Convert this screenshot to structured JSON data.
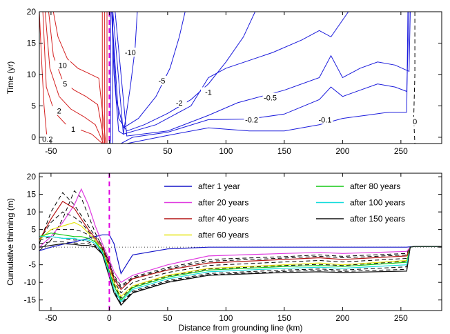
{
  "chart_data": [
    {
      "type": "contour",
      "ylabel": "Time (yr)",
      "xlim": [
        -60,
        285
      ],
      "ylim": [
        -1,
        20
      ],
      "xticks": [
        -50,
        0,
        50,
        100,
        150,
        200,
        250
      ],
      "yticks": [
        0,
        5,
        10,
        15,
        20
      ],
      "grounding_line_x": 0,
      "positive_color": "#d42020",
      "negative_color": "#1a1adc",
      "zero_color": "#000000",
      "contour_labels": [
        {
          "text": "10",
          "x": -40,
          "y": 11.5,
          "sign": "pos"
        },
        {
          "text": "5",
          "x": -38,
          "y": 8.5,
          "sign": "pos"
        },
        {
          "text": "2",
          "x": -43,
          "y": 4.2,
          "sign": "pos"
        },
        {
          "text": "1",
          "x": -31,
          "y": 1.3,
          "sign": "pos"
        },
        {
          "text": "0.2",
          "x": -53,
          "y": -0.3,
          "sign": "pos"
        },
        {
          "text": "-10",
          "x": 18,
          "y": 13.5,
          "sign": "neg"
        },
        {
          "text": "-5",
          "x": 45,
          "y": 9.0,
          "sign": "neg"
        },
        {
          "text": "-2",
          "x": 60,
          "y": 5.5,
          "sign": "neg"
        },
        {
          "text": "-1",
          "x": 85,
          "y": 7.2,
          "sign": "neg"
        },
        {
          "text": "-0.5",
          "x": 138,
          "y": 6.3,
          "sign": "neg"
        },
        {
          "text": "-0.2",
          "x": 122,
          "y": 2.8,
          "sign": "neg"
        },
        {
          "text": "-0.1",
          "x": 185,
          "y": 2.8,
          "sign": "neg"
        },
        {
          "text": "0",
          "x": 262,
          "y": 2.5,
          "sign": "zero"
        }
      ],
      "contours": [
        {
          "level": 0.2,
          "x": [
            -60,
            -58,
            -56,
            -54,
            -53,
            -52
          ],
          "y": [
            20,
            12,
            5,
            1,
            -0.5,
            -1
          ]
        },
        {
          "level": 1,
          "x": [
            -57,
            -54,
            -47,
            -37,
            -25,
            -15,
            -6
          ],
          "y": [
            20,
            8,
            4,
            2,
            1.2,
            0.5,
            -1
          ]
        },
        {
          "level": 2,
          "x": [
            -55,
            -51,
            -43,
            -33,
            -22,
            -12,
            -5
          ],
          "y": [
            20,
            11,
            6.5,
            4.5,
            3.3,
            2,
            -1
          ]
        },
        {
          "level": 5,
          "x": [
            -52,
            -48,
            -40,
            -30,
            -20,
            -10,
            -4
          ],
          "y": [
            20,
            13,
            9,
            7.5,
            6.5,
            5.2,
            -1
          ]
        },
        {
          "level": 10,
          "x": [
            -48,
            -44,
            -36,
            -27,
            -18,
            -9,
            -3
          ],
          "y": [
            20,
            16,
            12.5,
            11,
            10.2,
            9.4,
            -1
          ]
        },
        {
          "level": -10,
          "x": [
            2,
            4,
            8,
            12,
            18,
            22,
            24
          ],
          "y": [
            20,
            10,
            1,
            0.5,
            8,
            14,
            20
          ]
        },
        {
          "level": -5,
          "x": [
            2,
            6,
            12,
            25,
            40,
            52,
            60,
            65
          ],
          "y": [
            20,
            6,
            1.5,
            3,
            6.5,
            11,
            16,
            20
          ]
        },
        {
          "level": -2,
          "x": [
            2,
            8,
            15,
            30,
            50,
            70,
            85,
            100,
            115,
            125
          ],
          "y": [
            20,
            3,
            1,
            2,
            3.8,
            6,
            8.5,
            12,
            16,
            20
          ]
        },
        {
          "level": -1,
          "x": [
            3,
            12,
            40,
            70,
            85,
            100,
            140,
            165,
            180,
            190,
            205
          ],
          "y": [
            20,
            0.5,
            2,
            5,
            9.5,
            11,
            13.5,
            15.5,
            17,
            16,
            20
          ]
        },
        {
          "level": -0.5,
          "x": [
            5,
            15,
            50,
            85,
            110,
            150,
            180,
            190,
            200,
            215,
            230,
            245,
            257,
            258
          ],
          "y": [
            20,
            0.2,
            1,
            3.5,
            5.5,
            7.5,
            9.5,
            13,
            9.5,
            11,
            12,
            11.5,
            10.5,
            20
          ]
        },
        {
          "level": -0.2,
          "x": [
            10,
            20,
            50,
            85,
            120,
            150,
            180,
            190,
            200,
            215,
            230,
            245,
            255,
            257
          ],
          "y": [
            -1,
            0,
            0.8,
            2.8,
            2.9,
            3.7,
            6.0,
            8.0,
            6.5,
            7.5,
            8.5,
            8.0,
            7.3,
            20
          ]
        },
        {
          "level": -0.1,
          "x": [
            15,
            50,
            85,
            120,
            150,
            180,
            200,
            220,
            240,
            255,
            256
          ],
          "y": [
            -1,
            0.3,
            1.5,
            1.0,
            1.0,
            2.0,
            3.0,
            3.5,
            4.0,
            4.0,
            20
          ]
        },
        {
          "level": 0,
          "x": [
            262,
            262,
            261,
            262
          ],
          "y": [
            20,
            10,
            3,
            -1
          ]
        }
      ]
    },
    {
      "type": "line",
      "xlabel": "Distance from grounding line (km)",
      "ylabel": "Cumulative thinning (m)",
      "xlim": [
        -60,
        285
      ],
      "ylim": [
        -18,
        21
      ],
      "xticks": [
        -50,
        0,
        50,
        100,
        150,
        200,
        250
      ],
      "yticks": [
        -15,
        -10,
        -5,
        0,
        5,
        10,
        15,
        20
      ],
      "grounding_line_x": 0,
      "legend": "upper-right",
      "x": [
        -60,
        -50,
        -40,
        -30,
        -24,
        -18,
        -12,
        -6,
        0,
        4,
        10,
        20,
        50,
        85,
        150,
        180,
        200,
        255,
        258,
        262,
        285
      ],
      "series": [
        {
          "name": "after 1 year",
          "color": "#1414c8",
          "values": [
            -1,
            0,
            0.8,
            1.5,
            2,
            2.5,
            3,
            3.5,
            3.5,
            1,
            -7.5,
            -2.2,
            -0.5,
            0,
            0,
            0,
            0,
            0,
            0.1,
            0.2,
            0.2
          ]
        },
        {
          "name": "after 20 years",
          "color": "#e03ce0",
          "values": [
            0,
            3,
            7,
            12,
            16.5,
            12,
            6,
            1,
            -3.5,
            -7,
            -10,
            -8,
            -5,
            -2.5,
            -1.8,
            -1.5,
            -1.8,
            -1.2,
            0,
            0.2,
            0.2
          ]
        },
        {
          "name": "after 40 years",
          "color": "#b41414",
          "values": [
            2,
            8,
            13,
            11,
            8,
            5,
            2.5,
            0,
            -5,
            -9,
            -12,
            -9,
            -6.5,
            -4.5,
            -3.5,
            -3,
            -3.5,
            -2.5,
            0,
            0.2,
            0.2
          ]
        },
        {
          "name": "after 60 years",
          "color": "#e6e614",
          "values": [
            2,
            5,
            6,
            7,
            6,
            4,
            2,
            -1,
            -6,
            -10,
            -14,
            -11,
            -8,
            -6,
            -5,
            -4.5,
            -5,
            -3.8,
            0,
            0.2,
            0.2
          ]
        },
        {
          "name": "after 80 years",
          "color": "#14c814",
          "values": [
            3,
            4,
            3.5,
            3,
            3,
            2.5,
            1.5,
            -1,
            -7,
            -11,
            -15,
            -11.5,
            -8.5,
            -6.5,
            -5.5,
            -5.2,
            -5.5,
            -4.3,
            0,
            0.2,
            0.2
          ]
        },
        {
          "name": "after 100 years",
          "color": "#14dcdc",
          "values": [
            3,
            3,
            2.5,
            2.5,
            2,
            2,
            1,
            -1.5,
            -7.5,
            -12,
            -15.5,
            -12,
            -9,
            -7,
            -6,
            -5.7,
            -6,
            -5,
            0,
            0.2,
            0.2
          ]
        },
        {
          "name": "after 150 years",
          "color": "#141414",
          "values": [
            0,
            0.5,
            1,
            0.8,
            0.5,
            0.5,
            0,
            -2,
            -8.5,
            -13,
            -16.5,
            -13,
            -10,
            -8,
            -7.2,
            -7,
            -7.2,
            -6.8,
            0,
            0.2,
            0.2
          ]
        }
      ],
      "intermediate_series_dashed": [
        [
          -1,
          2,
          8,
          16,
          14,
          9,
          4,
          0,
          -4,
          -8,
          -11,
          -8.5,
          -5.8,
          -3.5,
          -2.7,
          -2.2,
          -2.6,
          -1.8,
          0,
          0.2,
          0.2
        ],
        [
          1,
          10,
          15.5,
          12,
          9,
          6,
          3,
          0.5,
          -4.5,
          -8.5,
          -11.5,
          -8.8,
          -6.2,
          -4,
          -3.1,
          -2.6,
          -3,
          -2.2,
          0,
          0.2,
          0.2
        ],
        [
          2,
          7,
          10,
          8.5,
          7,
          4.5,
          2,
          -0.5,
          -5.5,
          -9.5,
          -13,
          -10,
          -7.2,
          -5.2,
          -4.2,
          -3.8,
          -4.2,
          -3.2,
          0,
          0.2,
          0.2
        ],
        [
          2,
          5,
          5,
          5,
          4.5,
          3.5,
          1.5,
          -1,
          -6.5,
          -10.5,
          -14.5,
          -11.2,
          -8.2,
          -6.2,
          -5.2,
          -4.9,
          -5.2,
          -4.0,
          0,
          0.2,
          0.2
        ],
        [
          2,
          3,
          2.5,
          2,
          2,
          1.5,
          0.5,
          -1.7,
          -8,
          -12.5,
          -16,
          -12.5,
          -9.5,
          -7.5,
          -6.5,
          -6.2,
          -6.5,
          -5.6,
          0,
          0.2,
          0.2
        ],
        [
          1,
          1.5,
          1.5,
          1.2,
          1,
          1,
          0.2,
          -1.8,
          -8.2,
          -12.8,
          -16.2,
          -12.8,
          -9.8,
          -7.8,
          -6.9,
          -6.6,
          -6.9,
          -6.3,
          0,
          0.2,
          0.2
        ]
      ]
    }
  ]
}
